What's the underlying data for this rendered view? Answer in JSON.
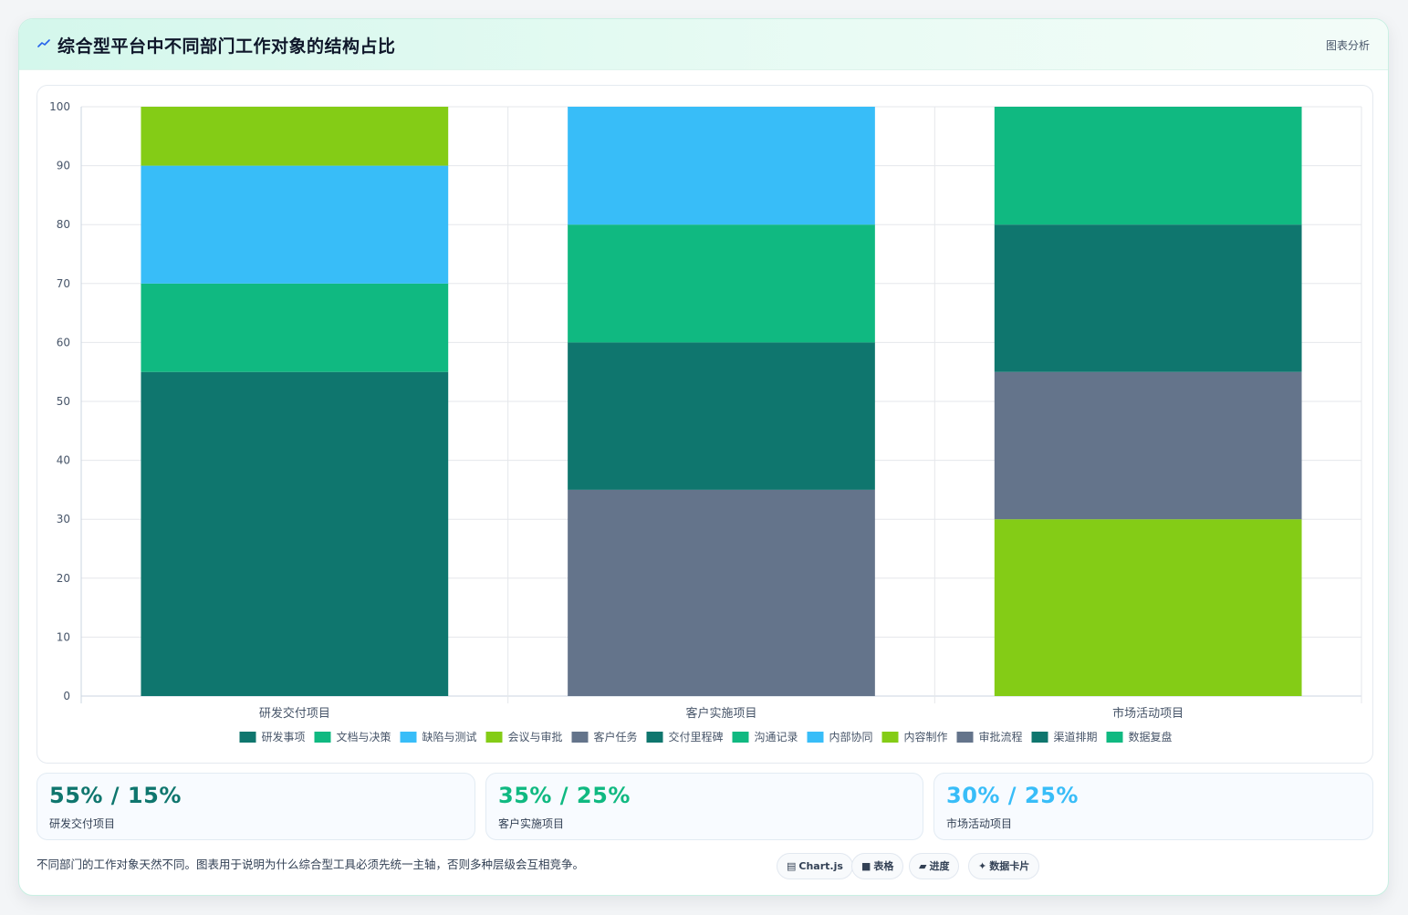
{
  "header": {
    "title": "综合型平台中不同部门工作对象的结构占比",
    "link_label": "图表分析"
  },
  "colors": {
    "研发事项": "#0f766e",
    "文档与决策": "#10b981",
    "缺陷与测试": "#38bdf8",
    "会议与审批": "#84cc16",
    "客户任务": "#64748b",
    "交付里程碑": "#0f766e",
    "沟通记录": "#10b981",
    "内部协同": "#38bdf8",
    "内容制作": "#84cc16",
    "审批流程": "#64748b",
    "渠道排期": "#0f766e",
    "数据复盘": "#10b981"
  },
  "chart_data": {
    "type": "bar",
    "stacked": true,
    "categories": [
      "研发交付项目",
      "客户实施项目",
      "市场活动项目"
    ],
    "ylim": [
      0,
      100
    ],
    "yticks": [
      0,
      10,
      20,
      30,
      40,
      50,
      60,
      70,
      80,
      90,
      100
    ],
    "grid": true,
    "legend_position": "bottom",
    "series": [
      {
        "name": "研发事项",
        "values": [
          55,
          0,
          0
        ]
      },
      {
        "name": "文档与决策",
        "values": [
          15,
          0,
          0
        ]
      },
      {
        "name": "缺陷与测试",
        "values": [
          20,
          0,
          0
        ]
      },
      {
        "name": "会议与审批",
        "values": [
          10,
          0,
          0
        ]
      },
      {
        "name": "客户任务",
        "values": [
          0,
          35,
          0
        ]
      },
      {
        "name": "交付里程碑",
        "values": [
          0,
          25,
          0
        ]
      },
      {
        "name": "沟通记录",
        "values": [
          0,
          20,
          0
        ]
      },
      {
        "name": "内部协同",
        "values": [
          0,
          20,
          0
        ]
      },
      {
        "name": "内容制作",
        "values": [
          0,
          0,
          30
        ]
      },
      {
        "name": "审批流程",
        "values": [
          0,
          0,
          25
        ]
      },
      {
        "name": "渠道排期",
        "values": [
          0,
          0,
          25
        ]
      },
      {
        "name": "数据复盘",
        "values": [
          0,
          0,
          20
        ]
      }
    ]
  },
  "stats": [
    {
      "value": "55% / 15%",
      "label": "研发交付项目",
      "color": "#0f766e"
    },
    {
      "value": "35% / 25%",
      "label": "客户实施项目",
      "color": "#10b981"
    },
    {
      "value": "30% / 25%",
      "label": "市场活动项目",
      "color": "#38bdf8"
    }
  ],
  "footnote": "不同部门的工作对象天然不同。图表用于说明为什么综合型工具必须先统一主轴，否则多种层级会互相竞争。",
  "pills": [
    {
      "icon": "▤",
      "icon_name": "chart-icon",
      "label": "Chart.js"
    },
    {
      "icon": "■",
      "icon_name": "table-icon",
      "label": "表格"
    },
    {
      "icon": "▰",
      "icon_name": "progress-icon",
      "label": "进度"
    },
    {
      "icon": "✦",
      "icon_name": "sparkle-icon",
      "label": "数据卡片"
    }
  ]
}
